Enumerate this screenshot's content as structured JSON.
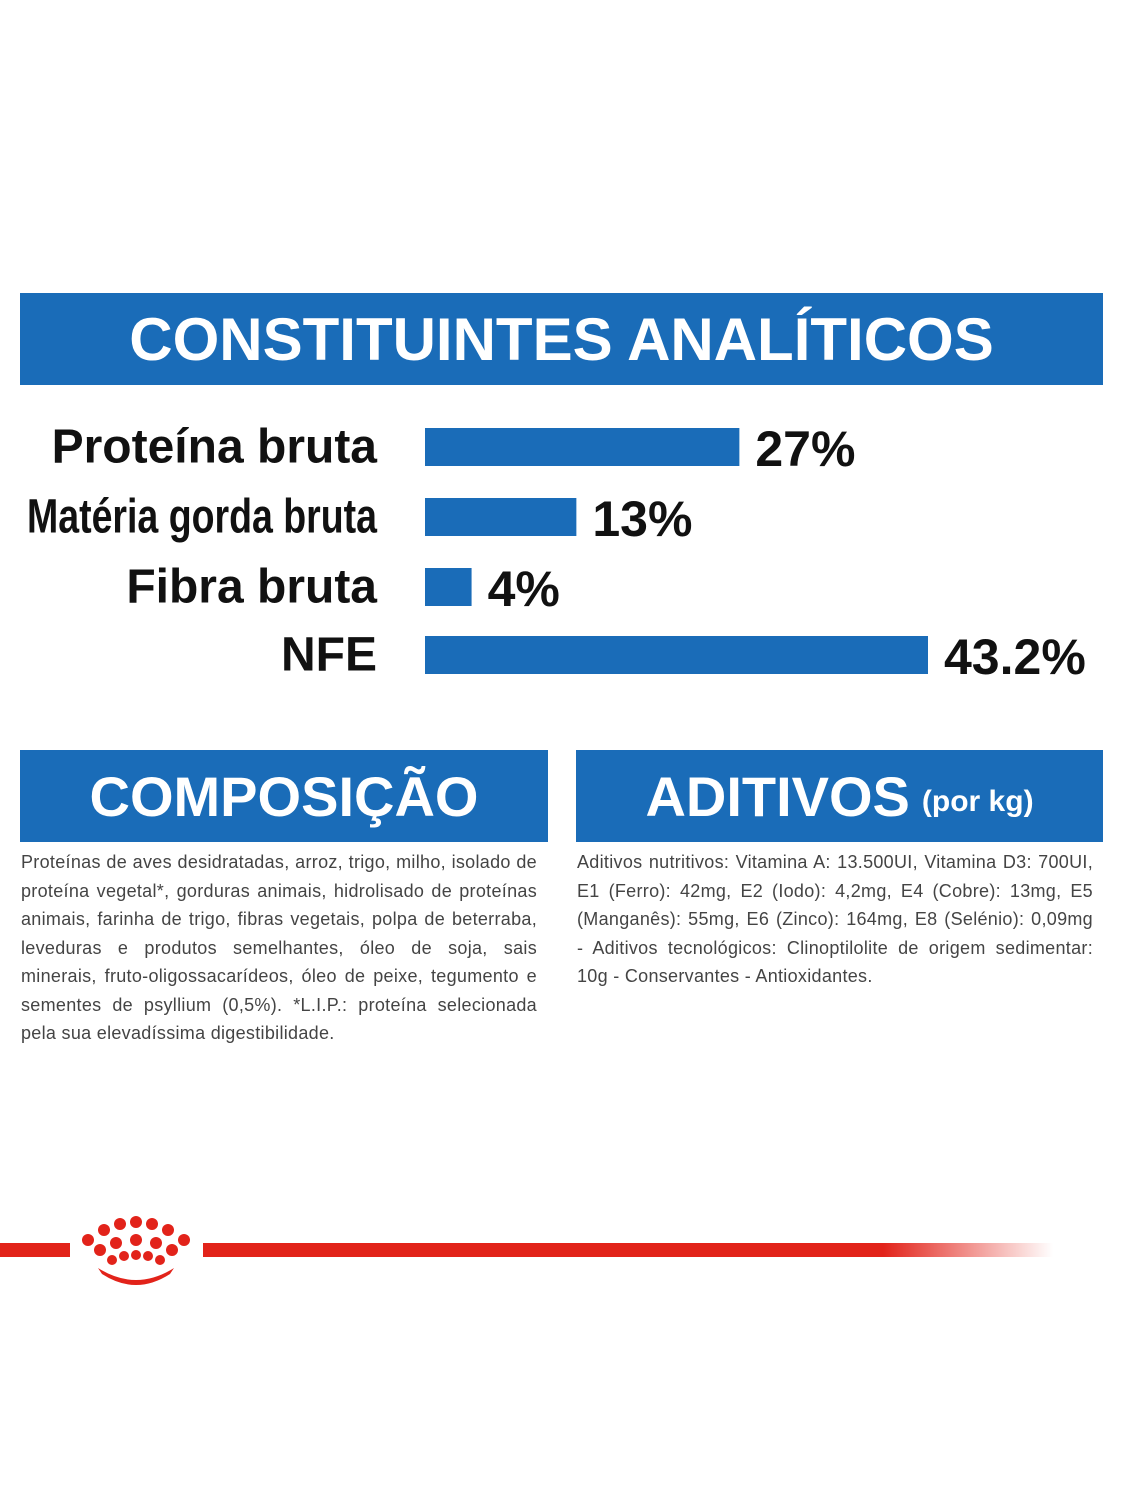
{
  "chart_data": {
    "type": "bar",
    "orientation": "horizontal",
    "title": "CONSTITUINTES ANALÍTICOS",
    "categories": [
      "Proteína bruta",
      "Matéria gorda bruta",
      "Fibra bruta",
      "NFE"
    ],
    "values": [
      27,
      13,
      4,
      43.2
    ],
    "value_labels": [
      "27%",
      "13%",
      "4%",
      "43.2%"
    ],
    "color": "#1a6cb8"
  },
  "composicao": {
    "title": "COMPOSIÇÃO",
    "text": "Proteínas de aves desidratadas, arroz, trigo, milho, isolado de proteína vegetal*, gorduras animais, hidrolisado de proteínas animais, farinha de trigo, fibras vegetais, polpa de beterraba, leveduras e produtos semelhantes, óleo de soja, sais minerais, fruto-oligossacarídeos, óleo de peixe, tegumento e sementes de psyllium (0,5%). *L.I.P.: proteína selecionada pela sua elevadíssima digestibilidade."
  },
  "aditivos": {
    "title": "ADITIVOS",
    "subtitle": "(por kg)",
    "text": "Aditivos nutritivos: Vitamina A: 13.500UI, Vitamina D3: 700UI, E1 (Ferro): 42mg, E2 (Iodo): 4,2mg, E4 (Cobre): 13mg, E5 (Manganês): 55mg, E6 (Zinco): 164mg, E8 (Selénio): 0,09mg - Aditivos tecnológicos: Clinoptilolite de origem sedimentar: 10g - Conservantes - Antioxidantes."
  }
}
